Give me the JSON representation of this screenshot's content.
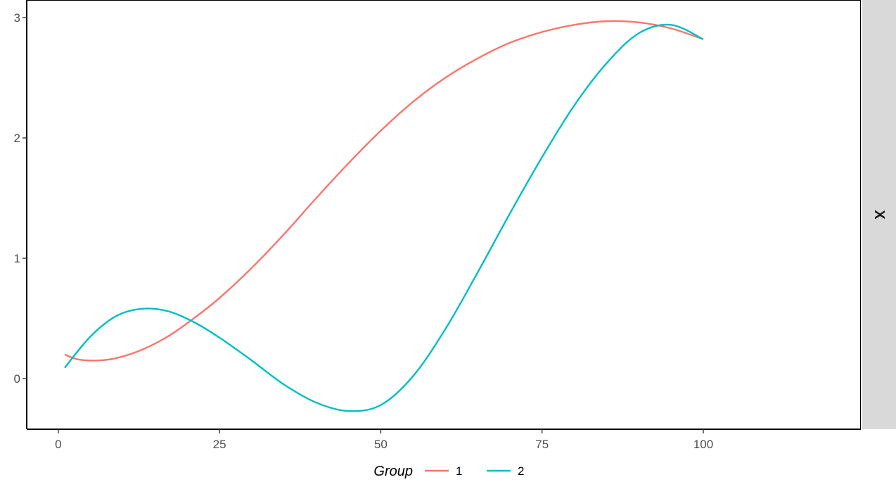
{
  "chart_data": {
    "type": "line",
    "title": "",
    "xlabel": "",
    "ylabel": "",
    "xlim": [
      1,
      100
    ],
    "ylim": [
      -0.35,
      3.05
    ],
    "x_ticks": [
      0,
      25,
      50,
      75,
      100
    ],
    "x_tick_labels": [
      "0",
      "25",
      "50",
      "75",
      "100"
    ],
    "y_ticks": [
      0,
      1,
      2,
      3
    ],
    "y_tick_labels": [
      "0",
      "1",
      "2",
      "3"
    ],
    "facet_strip_label": "X",
    "grid": false,
    "legend": {
      "position": "bottom",
      "title": "Group",
      "entries": [
        "1",
        "2"
      ]
    },
    "series": [
      {
        "name": "1",
        "color": "#F8766D",
        "x": [
          1,
          3,
          6,
          9,
          13,
          17,
          21,
          25,
          30,
          35,
          40,
          45,
          50,
          55,
          60,
          65,
          70,
          75,
          80,
          85,
          90,
          95,
          100
        ],
        "y": [
          0.2,
          0.16,
          0.15,
          0.17,
          0.24,
          0.35,
          0.5,
          0.67,
          0.92,
          1.2,
          1.5,
          1.79,
          2.06,
          2.3,
          2.5,
          2.66,
          2.79,
          2.88,
          2.94,
          2.97,
          2.96,
          2.91,
          2.82
        ]
      },
      {
        "name": "2",
        "color": "#00BFC4",
        "x": [
          1,
          5,
          9,
          13,
          17,
          21,
          25,
          30,
          35,
          40,
          45,
          50,
          55,
          60,
          65,
          70,
          75,
          80,
          85,
          90,
          95,
          100
        ],
        "y": [
          0.09,
          0.35,
          0.52,
          0.58,
          0.56,
          0.47,
          0.34,
          0.15,
          -0.05,
          -0.2,
          -0.27,
          -0.22,
          0.02,
          0.41,
          0.88,
          1.37,
          1.84,
          2.27,
          2.62,
          2.87,
          2.94,
          2.82
        ]
      }
    ]
  }
}
